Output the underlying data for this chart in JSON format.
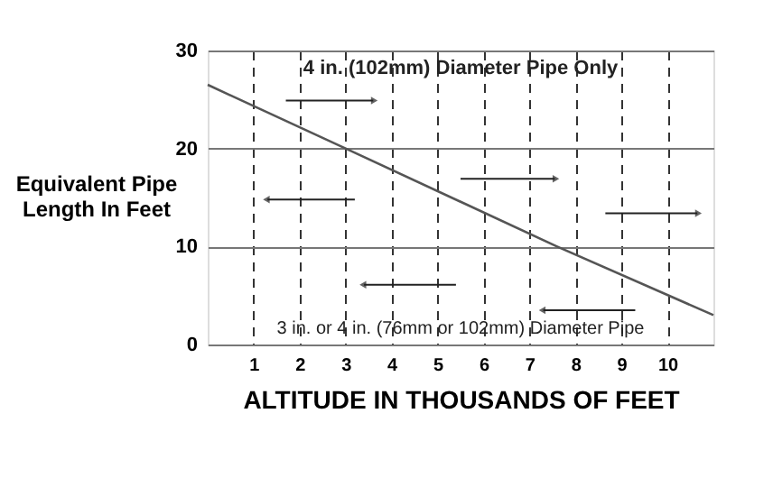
{
  "chart_data": {
    "type": "line",
    "xlabel": "ALTITUDE IN THOUSANDS OF FEET",
    "ylabel": "Equivalent Pipe Length In Feet",
    "x": [
      0,
      3,
      7.6,
      11
    ],
    "series": [
      {
        "color": "#555555",
        "values": [
          26.5,
          20,
          10,
          3
        ]
      }
    ],
    "xlim": [
      0,
      11
    ],
    "xticks": [
      1,
      2,
      3,
      4,
      5,
      6,
      7,
      8,
      9,
      10
    ],
    "ylim": [
      0,
      30
    ],
    "yticks": [
      0,
      10,
      20,
      30
    ],
    "grid": true,
    "marker": "none",
    "line_style": "solid",
    "annotations": [
      "4 in. (102mm) Diameter Pipe Only",
      "3 in. or 4 in. (76mm or 102mm) Diameter Pipe"
    ]
  }
}
